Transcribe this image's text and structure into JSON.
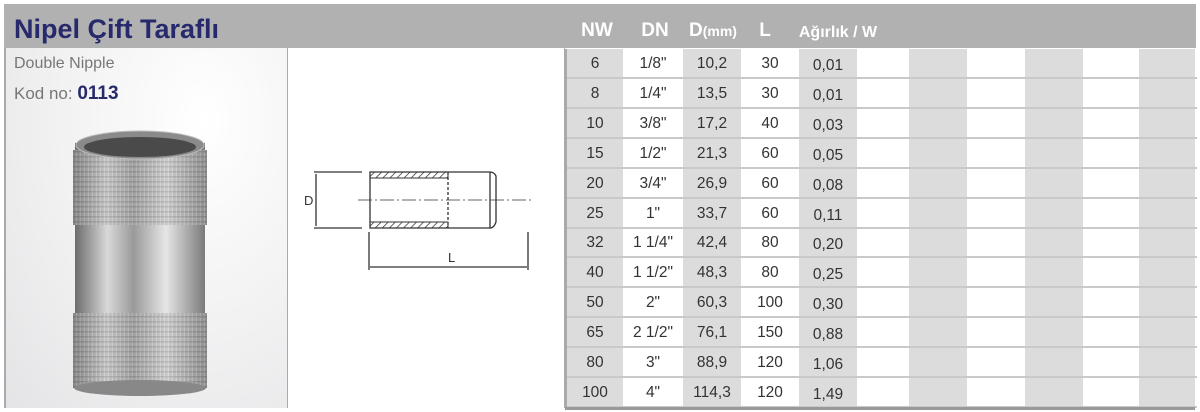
{
  "header": {
    "title": "Nipel Çift Taraflı",
    "columns": {
      "nw": "NW",
      "dn": "DN",
      "d": "D",
      "d_unit": "(mm)",
      "l": "L",
      "w": "Ağırlık / W"
    }
  },
  "product": {
    "subtitle": "Double Nipple",
    "code_label": "Kod no:",
    "code": "0113"
  },
  "drawing": {
    "d_label": "D",
    "l_label": "L"
  },
  "colors": {
    "title": "#26296b",
    "header_bg": "#b2b1b2",
    "stripe": "#dcdcdc"
  },
  "rows": [
    {
      "nw": "6",
      "dn": "1/8\"",
      "d": "10,2",
      "l": "30",
      "w": "0,01"
    },
    {
      "nw": "8",
      "dn": "1/4\"",
      "d": "13,5",
      "l": "30",
      "w": "0,01"
    },
    {
      "nw": "10",
      "dn": "3/8\"",
      "d": "17,2",
      "l": "40",
      "w": "0,03"
    },
    {
      "nw": "15",
      "dn": "1/2\"",
      "d": "21,3",
      "l": "60",
      "w": "0,05"
    },
    {
      "nw": "20",
      "dn": "3/4\"",
      "d": "26,9",
      "l": "60",
      "w": "0,08"
    },
    {
      "nw": "25",
      "dn": "1\"",
      "d": "33,7",
      "l": "60",
      "w": "0,11"
    },
    {
      "nw": "32",
      "dn": "1 1/4\"",
      "d": "42,4",
      "l": "80",
      "w": "0,20"
    },
    {
      "nw": "40",
      "dn": "1 1/2\"",
      "d": "48,3",
      "l": "80",
      "w": "0,25"
    },
    {
      "nw": "50",
      "dn": "2\"",
      "d": "60,3",
      "l": "100",
      "w": "0,30"
    },
    {
      "nw": "65",
      "dn": "2 1/2\"",
      "d": "76,1",
      "l": "150",
      "w": "0,88"
    },
    {
      "nw": "80",
      "dn": "3\"",
      "d": "88,9",
      "l": "120",
      "w": "1,06"
    },
    {
      "nw": "100",
      "dn": "4\"",
      "d": "114,3",
      "l": "120",
      "w": "1,49"
    }
  ]
}
